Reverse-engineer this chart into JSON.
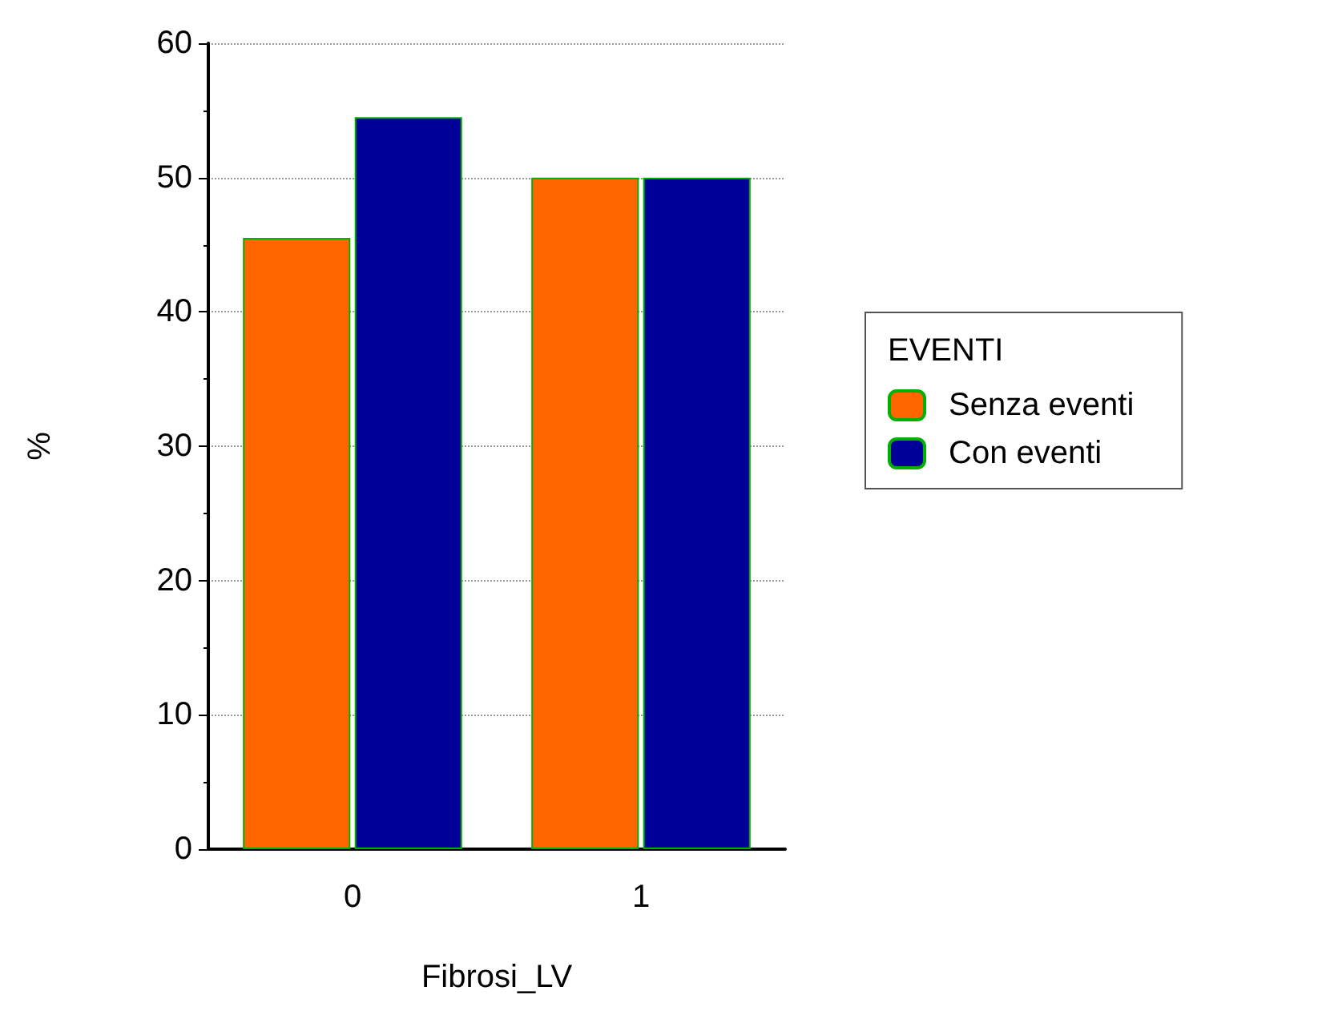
{
  "chart_data": {
    "type": "bar",
    "xlabel": "Fibrosi_LV",
    "ylabel": "%",
    "legend_title": "EVENTI",
    "categories": [
      "0",
      "1"
    ],
    "series": [
      {
        "name": "Senza eventi",
        "color": "#ff6600",
        "values": [
          45.5,
          50
        ]
      },
      {
        "name": "Con eventi",
        "color": "#000099",
        "values": [
          54.5,
          50
        ]
      }
    ],
    "ylim": [
      0,
      60
    ],
    "yticks": [
      0,
      10,
      20,
      30,
      40,
      50,
      60
    ],
    "grid": "y",
    "legend": "right"
  }
}
